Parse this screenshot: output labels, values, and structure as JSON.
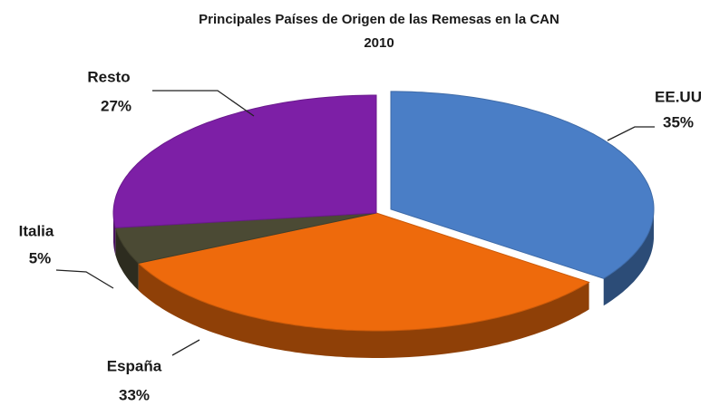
{
  "chart_data": {
    "type": "pie",
    "title": "Principales Países de Origen de las Remesas en la CAN",
    "subtitle": "2010",
    "categories": [
      "EE.UU",
      "España",
      "Italia",
      "Resto"
    ],
    "values": [
      35,
      33,
      5,
      27
    ],
    "value_labels": [
      "35%",
      "33%",
      "5%",
      "27%"
    ],
    "colors": [
      "#4a7ec6",
      "#ee6a0c",
      "#4b4a34",
      "#7d1fa6"
    ]
  }
}
